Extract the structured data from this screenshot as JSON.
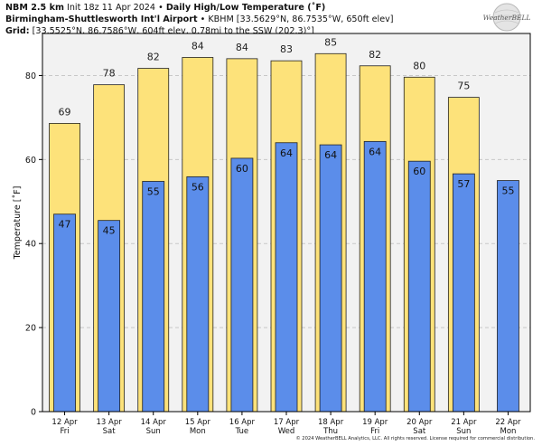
{
  "header": {
    "model": "NBM 2.5 km",
    "init": "Init 18z 11 Apr 2024",
    "bullet": "•",
    "title": "Daily High/Low Temperature (˚F)",
    "station": "Birmingham-Shuttlesworth Int'l Airport",
    "station_info": "KBHM [33.5629°N, 86.7535°W, 650ft elev]",
    "grid_label": "Grid:",
    "grid_info": "[33.5525°N, 86.7586°W, 604ft elev, 0.78mi to the SSW (202.3)°]"
  },
  "logo": {
    "text": "WeatherBELL",
    "icon": "weatherbell-globe-logo"
  },
  "footer": {
    "copyright": "© 2024 WeatherBELL Analytics, LLC. All rights reserved. License required for commercial distribution."
  },
  "colors": {
    "high": "#fde27a",
    "low": "#5b8dea",
    "plot_bg": "#f2f2f2",
    "grid": "#c8c8c8"
  },
  "chart_data": {
    "type": "bar",
    "ylabel": "Temperature [˚F]",
    "ylim": [
      0,
      90
    ],
    "yticks": [
      0,
      20,
      40,
      60,
      80
    ],
    "grid": true,
    "categories": [
      {
        "date": "12 Apr",
        "day": "Fri"
      },
      {
        "date": "13 Apr",
        "day": "Sat"
      },
      {
        "date": "14 Apr",
        "day": "Sun"
      },
      {
        "date": "15 Apr",
        "day": "Mon"
      },
      {
        "date": "16 Apr",
        "day": "Tue"
      },
      {
        "date": "17 Apr",
        "day": "Wed"
      },
      {
        "date": "18 Apr",
        "day": "Thu"
      },
      {
        "date": "19 Apr",
        "day": "Fri"
      },
      {
        "date": "20 Apr",
        "day": "Sat"
      },
      {
        "date": "21 Apr",
        "day": "Sun"
      },
      {
        "date": "22 Apr",
        "day": "Mon"
      }
    ],
    "series": [
      {
        "key": "high",
        "values": [
          69,
          78,
          82,
          84,
          84,
          83,
          85,
          82,
          80,
          75,
          null
        ],
        "bar_values": [
          68.6,
          77.8,
          81.7,
          84.3,
          84.0,
          83.5,
          85.2,
          82.3,
          79.6,
          74.8,
          null
        ]
      },
      {
        "key": "low",
        "values": [
          47,
          45,
          55,
          56,
          60,
          64,
          64,
          64,
          60,
          57,
          55
        ],
        "bar_values": [
          47.0,
          45.5,
          54.8,
          55.9,
          60.3,
          64.0,
          63.5,
          64.3,
          59.6,
          56.6,
          55.0
        ]
      }
    ]
  }
}
